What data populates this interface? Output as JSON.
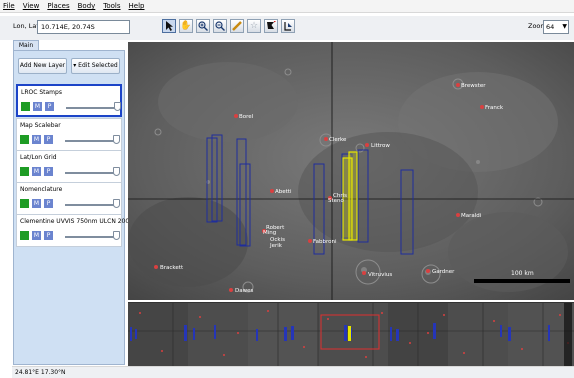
{
  "menu": [
    "File",
    "View",
    "Places",
    "Body",
    "Tools",
    "Help"
  ],
  "coords": {
    "label": "Lon, Lat",
    "value": "10.714E, 20.74S"
  },
  "tools": [
    "arrow-icon",
    "hand-icon",
    "zoom-in-icon",
    "zoom-out-icon",
    "ruler-icon",
    "star-icon",
    "pin-icon",
    "export-icon"
  ],
  "zoom": {
    "label": "Zoom:",
    "value": "64"
  },
  "tab": "Main",
  "panel": {
    "add_layer": "Add New Layer",
    "edit_selected": "▾ Edit Selected"
  },
  "layers": [
    {
      "name": "LROC Stamps",
      "selected": true
    },
    {
      "name": "Map Scalebar"
    },
    {
      "name": "Lat/Lon Grid"
    },
    {
      "name": "Nomenclature"
    },
    {
      "name": "Clementine UVVIS 750nm ULCN 2005"
    }
  ],
  "layer_buttons": {
    "m": "M",
    "p": "P"
  },
  "places": [
    {
      "name": "Brewster"
    },
    {
      "name": "Franck"
    },
    {
      "name": "Borel"
    },
    {
      "name": "Clerke"
    },
    {
      "name": "Littrow"
    },
    {
      "name": "Abetti"
    },
    {
      "name": "Chris"
    },
    {
      "name": "Steno"
    },
    {
      "name": "Maraldi"
    },
    {
      "name": "Robert"
    },
    {
      "name": "Ming"
    },
    {
      "name": "Ockis"
    },
    {
      "name": "Jerik"
    },
    {
      "name": "Fabbroni"
    },
    {
      "name": "Vitruvius"
    },
    {
      "name": "Gardner"
    },
    {
      "name": "Brackett"
    },
    {
      "name": "Dawes"
    }
  ],
  "scalebar": "100 km",
  "status": "24.81°E  17.30°N",
  "colors": {
    "stamp_outline": "#1f2d9c",
    "stamp_selected": "#e6e600",
    "place_marker": "#d94040",
    "selection": "#1c44c8"
  }
}
